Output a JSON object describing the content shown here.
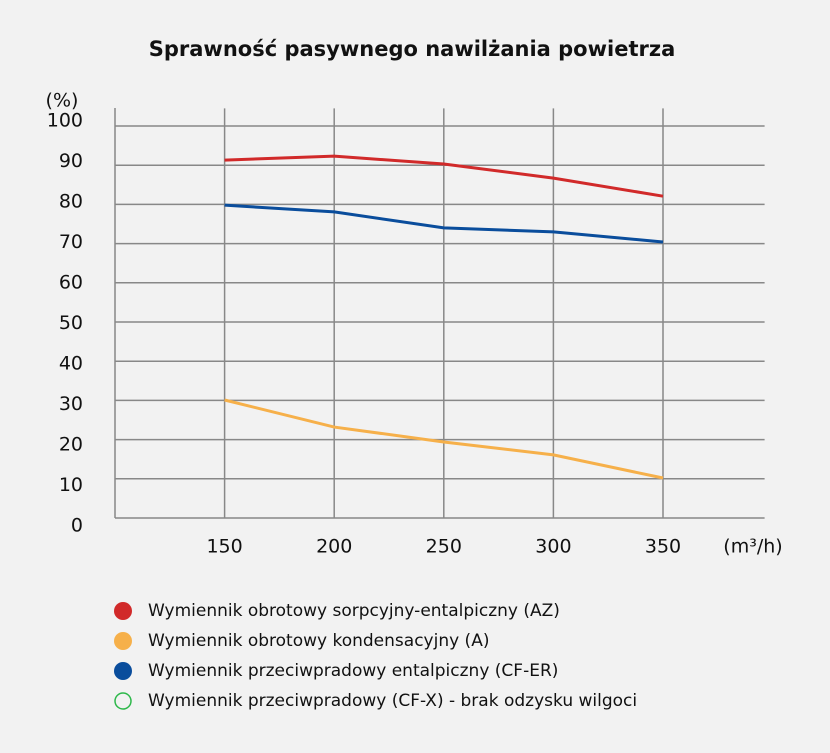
{
  "chart_data": {
    "type": "line",
    "title": "Sprawność pasywnego nawilżania powietrza",
    "y_label": "(%)",
    "x_label": "(m³/h)",
    "x": [
      150,
      200,
      250,
      300,
      350
    ],
    "xlim": [
      100,
      400
    ],
    "xticks": [
      150,
      200,
      250,
      300,
      350
    ],
    "ylim": [
      0,
      105
    ],
    "yticks": [
      0,
      10,
      20,
      30,
      40,
      50,
      60,
      70,
      80,
      90,
      100
    ],
    "grid": true,
    "series": [
      {
        "name": "Wymiennik obrotowy sorpcyjny-entalpiczny (AZ)",
        "color": "#d12a2a",
        "values": [
          91.3,
          92.3,
          90.3,
          86.7,
          82.1
        ]
      },
      {
        "name": "Wymiennik obrotowy kondensacyjny (A)",
        "color": "#f6b04a",
        "values": [
          30.1,
          23.2,
          19.4,
          16.1,
          10.2
        ]
      },
      {
        "name": "Wymiennik przeciwpradowy entalpiczny (CF-ER)",
        "color": "#0a4d9c",
        "values": [
          79.8,
          78.1,
          74.0,
          73.0,
          70.4
        ]
      },
      {
        "name": "Wymiennik przeciwpradowy (CF-X) - brak odzysku wilgoci",
        "color": "#2db84a",
        "marker": "hollow",
        "values": [
          null,
          null,
          null,
          null,
          null
        ]
      }
    ]
  }
}
